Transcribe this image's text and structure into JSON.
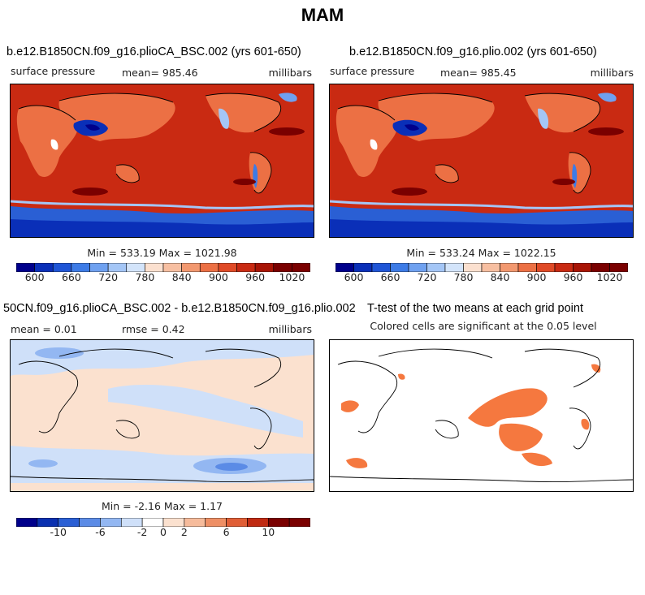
{
  "figure": {
    "title": "MAM"
  },
  "panels": [
    {
      "title": "b.e12.B1850CN.f09_g16.plioCA_BSC.002 (yrs 601-650)",
      "variable": "surface pressure",
      "stat_text": "mean= 985.46",
      "units": "millibars",
      "minmax_text": "Min = 533.19 Max = 1021.98"
    },
    {
      "title": "b.e12.B1850CN.f09_g16.plio.002 (yrs 601-650)",
      "variable": "surface pressure",
      "stat_text": "mean= 985.45",
      "units": "millibars",
      "minmax_text": "Min = 533.24 Max = 1022.15"
    },
    {
      "title": "50CN.f09_g16.plioCA_BSC.002 - b.e12.B1850CN.f09_g16.plio.002",
      "stat_mean": "mean =    0.01",
      "stat_rmse": "rmse =    0.42",
      "units": "millibars",
      "minmax_text": "Min =  -2.16 Max =    1.17"
    },
    {
      "title": "T-test of the two means at each grid point",
      "subtitle": "Colored cells are significant at the 0.05 level"
    }
  ],
  "chart_data": [
    {
      "type": "heatmap",
      "title": "b.e12.B1850CN.f09_g16.plioCA_BSC.002 (yrs 601-650)",
      "variable": "surface pressure",
      "units": "millibars",
      "mean": 985.46,
      "min": 533.19,
      "max": 1021.98,
      "colorbar": {
        "levels": [
          600,
          630,
          660,
          690,
          720,
          750,
          780,
          810,
          840,
          870,
          900,
          930,
          960,
          990,
          1020
        ],
        "tick_labels": [
          "600",
          "660",
          "720",
          "780",
          "840",
          "900",
          "960",
          "1020"
        ]
      }
    },
    {
      "type": "heatmap",
      "title": "b.e12.B1850CN.f09_g16.plio.002 (yrs 601-650)",
      "variable": "surface pressure",
      "units": "millibars",
      "mean": 985.45,
      "min": 533.24,
      "max": 1022.15,
      "colorbar": {
        "levels": [
          600,
          630,
          660,
          690,
          720,
          750,
          780,
          810,
          840,
          870,
          900,
          930,
          960,
          990,
          1020
        ],
        "tick_labels": [
          "600",
          "660",
          "720",
          "780",
          "840",
          "900",
          "960",
          "1020"
        ]
      }
    },
    {
      "type": "heatmap",
      "title": "50CN.f09_g16.plioCA_BSC.002 - b.e12.B1850CN.f09_g16.plio.002",
      "units": "millibars",
      "mean": 0.01,
      "rmse": 0.42,
      "min": -2.16,
      "max": 1.17,
      "colorbar": {
        "levels": [
          -12,
          -10,
          -8,
          -6,
          -4,
          -2,
          0,
          2,
          4,
          6,
          8,
          10,
          12
        ],
        "tick_labels": [
          "-10",
          "-6",
          "-2",
          "0",
          "2",
          "6",
          "10"
        ]
      }
    },
    {
      "type": "heatmap",
      "title": "T-test of the two means at each grid point",
      "subtitle": "Colored cells are significant at the 0.05 level",
      "significance_level": 0.05
    }
  ],
  "colors": {
    "abs_ramp": [
      "#00008b",
      "#0a2fb8",
      "#1f55d6",
      "#3d7be6",
      "#6fa1f0",
      "#a4c6f6",
      "#d3e4fa",
      "#fbe0cf",
      "#f7bfa1",
      "#f2986f",
      "#ec7044",
      "#e04a26",
      "#c92a12",
      "#a81405",
      "#7a0000"
    ],
    "diff_ramp": [
      "#00008b",
      "#0a30b0",
      "#2a5fd4",
      "#5b8be6",
      "#93b7f2",
      "#cfe0f9",
      "#ffffff",
      "#fbe1cf",
      "#f6bb9b",
      "#ee8f65",
      "#e05e36",
      "#c02a12",
      "#7a0000"
    ],
    "significance": "#f5783f"
  }
}
